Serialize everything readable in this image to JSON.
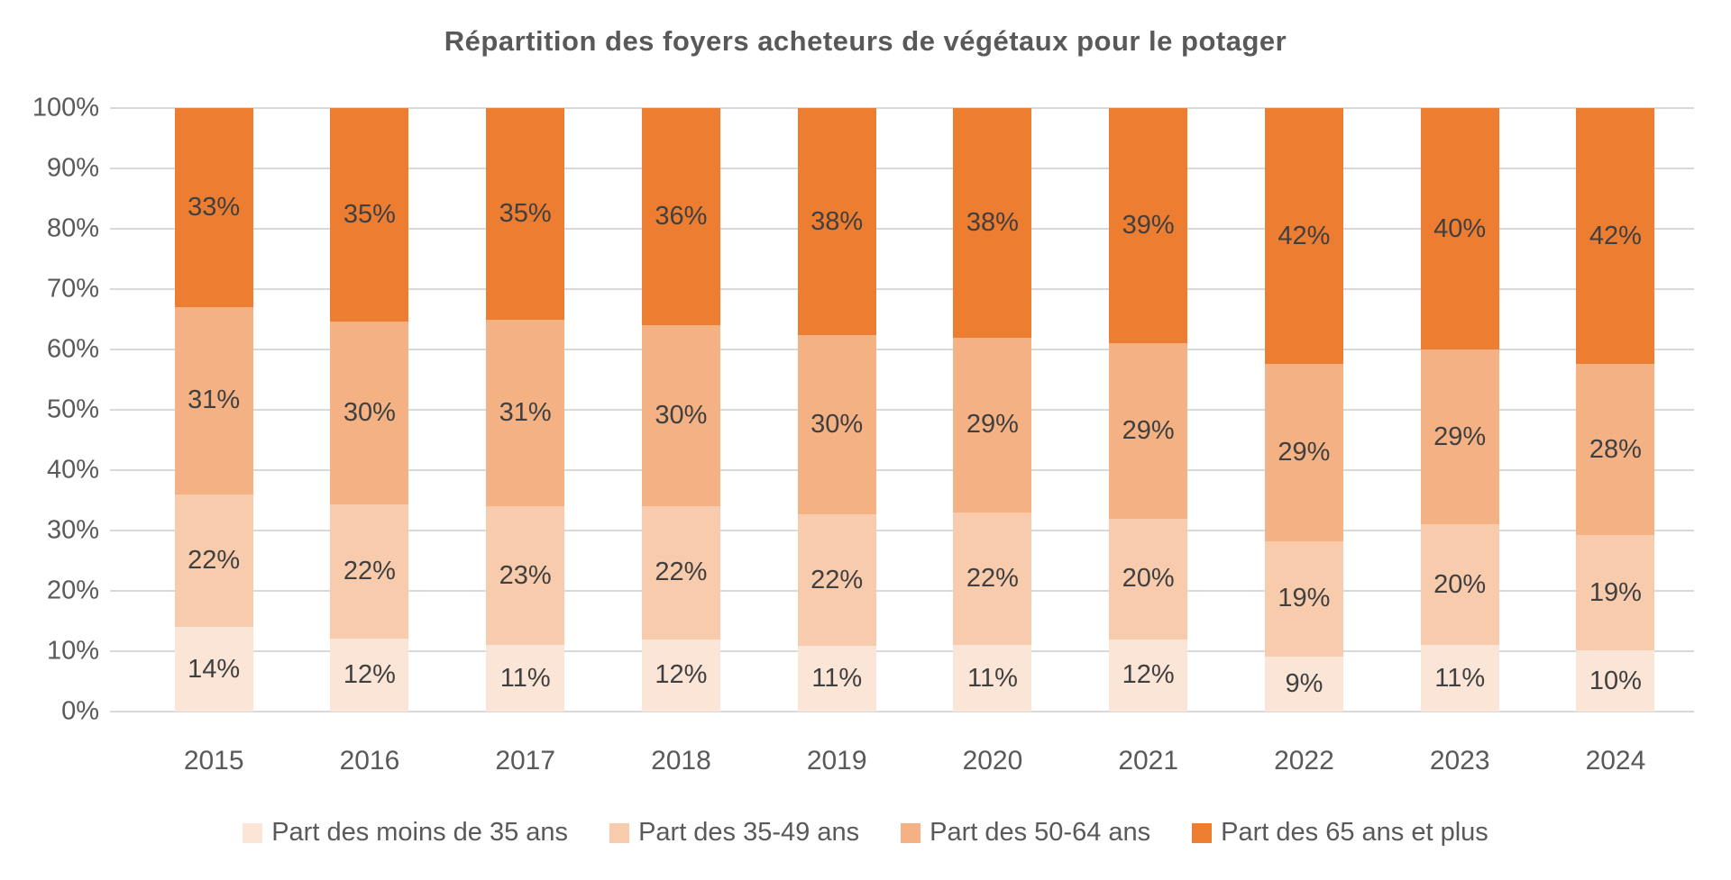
{
  "title": "Répartition des foyers acheteurs de végétaux pour le potager",
  "chart_data": {
    "type": "bar",
    "stacked": true,
    "percent_stacked": true,
    "title": "Répartition des foyers acheteurs de végétaux pour le potager",
    "categories": [
      "2015",
      "2016",
      "2017",
      "2018",
      "2019",
      "2020",
      "2021",
      "2022",
      "2023",
      "2024"
    ],
    "series": [
      {
        "name": "Part des moins de 35 ans",
        "color": "#FBE5D6",
        "values": [
          14,
          12,
          11,
          12,
          11,
          11,
          12,
          9,
          11,
          10
        ]
      },
      {
        "name": "Part des 35-49 ans",
        "color": "#F8CBAD",
        "values": [
          22,
          22,
          23,
          22,
          22,
          22,
          20,
          19,
          20,
          19
        ]
      },
      {
        "name": "Part des 50-64 ans",
        "color": "#F4B183",
        "values": [
          31,
          30,
          31,
          30,
          30,
          29,
          29,
          29,
          29,
          28
        ]
      },
      {
        "name": "Part des 65 ans et plus",
        "color": "#ED7D31",
        "values": [
          33,
          35,
          35,
          36,
          38,
          38,
          39,
          42,
          40,
          42
        ]
      }
    ],
    "value_suffix": "%",
    "xlabel": "",
    "ylabel": "",
    "ylim": [
      0,
      100
    ],
    "ytick_step": 10,
    "ytick_labels": [
      "0%",
      "10%",
      "20%",
      "30%",
      "40%",
      "50%",
      "60%",
      "70%",
      "80%",
      "90%",
      "100%"
    ],
    "grid": true,
    "grid_color": "#D9D9D9",
    "axis_text_color": "#595959",
    "data_label_color": "#404040",
    "legend_position": "bottom",
    "legend": [
      "Part des moins de 35 ans",
      "Part des 35-49 ans",
      "Part des 50-64 ans",
      "Part des 65 ans et plus"
    ]
  }
}
